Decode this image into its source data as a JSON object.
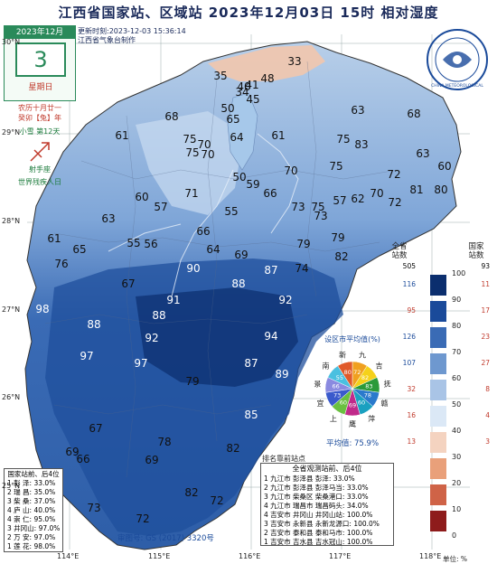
{
  "title": "江西省国家站、区域站   2023年12月03日  15时   相对湿度",
  "date_box": {
    "month": "2023年12月",
    "day": "3",
    "weekday": "星期日"
  },
  "lunar": {
    "line1": "农历十月廿一",
    "line2": "癸卯【兔】年"
  },
  "solar_term": "小雪  第12天",
  "zodiac": "射手座",
  "holiday": "世界残疾人日",
  "update_time": "更新时刻:2023-12-03  15:36:14",
  "producer": "江西省气象台制作",
  "logo_text": "CHINA METEOROLOGICAL",
  "approval": "审图号: GS (2017) 3320号",
  "lat_labels": [
    "30°N",
    "29°N",
    "28°N",
    "27°N",
    "26°N",
    "25°N"
  ],
  "lon_labels": [
    "114°E",
    "115°E",
    "116°E",
    "117°E",
    "118°E"
  ],
  "legend": {
    "header_left": "全省\n站数",
    "header_right": "国家\n站数",
    "total_count": "505",
    "national_total": "93",
    "ticks": [
      "100",
      "90",
      "80",
      "70",
      "60",
      "50",
      "40",
      "30",
      "20",
      "10",
      "0"
    ],
    "bins": [
      {
        "color": "#0b2e6e",
        "count": "116",
        "national": "11"
      },
      {
        "color": "#1a4a9a",
        "count": "95",
        "national": "17"
      },
      {
        "color": "#3a6bb5",
        "count": "126",
        "national": "23"
      },
      {
        "color": "#6e98cf",
        "count": "107",
        "national": "27"
      },
      {
        "color": "#a9c4e6",
        "count": "32",
        "national": "8"
      },
      {
        "color": "#dbe8f6",
        "count": "16",
        "national": "4"
      },
      {
        "color": "#f4d3c0",
        "count": "13",
        "national": "3"
      },
      {
        "color": "#e9a07a",
        "count": "",
        "national": ""
      },
      {
        "color": "#cf6347",
        "count": "",
        "national": ""
      },
      {
        "color": "#8e1b1b",
        "count": "",
        "national": ""
      }
    ],
    "unit": "单位: %"
  },
  "pie": {
    "title": "设区市平均值(%)",
    "average": "平均值: 75.9%",
    "slices": [
      {
        "name": "九",
        "value": "72",
        "color": "#f0a020"
      },
      {
        "name": "吉",
        "value": "82",
        "color": "#f5d11a"
      },
      {
        "name": "抚",
        "value": "83",
        "color": "#2a9a3a"
      },
      {
        "name": "赣",
        "value": "78",
        "color": "#2a7acc"
      },
      {
        "name": "萍",
        "value": "60",
        "color": "#1aa0c0"
      },
      {
        "name": "鹰",
        "value": "69",
        "color": "#c02a8a"
      },
      {
        "name": "上",
        "value": "60",
        "color": "#6ac040"
      },
      {
        "name": "宜",
        "value": "73",
        "color": "#3a5acc"
      },
      {
        "name": "景",
        "value": "66",
        "color": "#8a8ae0"
      },
      {
        "name": "南",
        "value": "55",
        "color": "#4ac0e0"
      },
      {
        "name": "新",
        "value": "80",
        "color": "#e05a2a"
      }
    ]
  },
  "left_rank": {
    "title": "国家站前、后4位",
    "rows": [
      {
        "n": "1",
        "name": "彭",
        "sub": "泽",
        "value": "33.0%"
      },
      {
        "n": "2",
        "name": "瑞",
        "sub": "昌",
        "value": "35.0%"
      },
      {
        "n": "3",
        "name": "柴",
        "sub": "桑",
        "value": "37.0%"
      },
      {
        "n": "4",
        "name": "庐",
        "sub": "山",
        "value": "40.0%"
      },
      {
        "n": "4",
        "name": "崇",
        "sub": "仁",
        "value": "95.0%"
      },
      {
        "n": "3",
        "name": "井冈山",
        "sub": "",
        "value": "97.0%"
      },
      {
        "n": "2",
        "name": "万",
        "sub": "安",
        "value": "97.0%"
      },
      {
        "n": "1",
        "name": "莲",
        "sub": "花",
        "value": "98.0%"
      }
    ]
  },
  "rank_title": "排名靠前站点",
  "right_rank": {
    "title": "全省观测站前、后4位",
    "rows": [
      {
        "n": "1",
        "text": "九江市  彭泽县      彭泽:  33.0%"
      },
      {
        "n": "2",
        "text": "九江市  彭泽县    彭泽马当: 33.0%"
      },
      {
        "n": "3",
        "text": "九江市  柴桑区    柴桑港口: 33.0%"
      },
      {
        "n": "4",
        "text": "九江市  瑞昌市    瑞昌码头: 34.0%"
      },
      {
        "n": "4",
        "text": "吉安市  井冈山    井冈山站: 100.0%"
      },
      {
        "n": "3",
        "text": "吉安市  永新县  永新龙源口: 100.0%"
      },
      {
        "n": "2",
        "text": "吉安市  泰和县    泰和马市: 100.0%"
      },
      {
        "n": "1",
        "text": "吉安市  吉水县    吉水冠山: 100.0%"
      }
    ]
  },
  "map_values": [
    {
      "v": "33"
    },
    {
      "v": "35"
    },
    {
      "v": "48"
    },
    {
      "v": "41"
    },
    {
      "v": "40"
    },
    {
      "v": "34"
    },
    {
      "v": "45"
    },
    {
      "v": "50"
    },
    {
      "v": "68"
    },
    {
      "v": "65"
    },
    {
      "v": "64"
    },
    {
      "v": "63"
    },
    {
      "v": "68"
    },
    {
      "v": "61"
    },
    {
      "v": "75"
    },
    {
      "v": "70"
    },
    {
      "v": "61"
    },
    {
      "v": "75"
    },
    {
      "v": "83"
    },
    {
      "v": "63"
    },
    {
      "v": "60"
    },
    {
      "v": "75"
    },
    {
      "v": "70"
    },
    {
      "v": "70"
    },
    {
      "v": "75"
    },
    {
      "v": "72"
    },
    {
      "v": "71"
    },
    {
      "v": "50"
    },
    {
      "v": "59"
    },
    {
      "v": "66"
    },
    {
      "v": "73"
    },
    {
      "v": "75"
    },
    {
      "v": "57"
    },
    {
      "v": "62"
    },
    {
      "v": "70"
    },
    {
      "v": "72"
    },
    {
      "v": "81"
    },
    {
      "v": "80"
    },
    {
      "v": "60"
    },
    {
      "v": "57"
    },
    {
      "v": "63"
    },
    {
      "v": "55"
    },
    {
      "v": "66"
    },
    {
      "v": "73"
    },
    {
      "v": "79"
    },
    {
      "v": "61"
    },
    {
      "v": "65"
    },
    {
      "v": "55"
    },
    {
      "v": "56"
    },
    {
      "v": "64"
    },
    {
      "v": "69"
    },
    {
      "v": "79"
    },
    {
      "v": "76"
    },
    {
      "v": "90"
    },
    {
      "v": "87"
    },
    {
      "v": "74"
    },
    {
      "v": "82"
    },
    {
      "v": "67"
    },
    {
      "v": "88"
    },
    {
      "v": "91"
    },
    {
      "v": "92"
    },
    {
      "v": "98"
    },
    {
      "v": "88"
    },
    {
      "v": "92"
    },
    {
      "v": "94"
    },
    {
      "v": "97"
    },
    {
      "v": "88"
    },
    {
      "v": "97"
    },
    {
      "v": "87"
    },
    {
      "v": "89"
    },
    {
      "v": "79"
    },
    {
      "v": "85"
    },
    {
      "v": "78"
    },
    {
      "v": "67"
    },
    {
      "v": "69"
    },
    {
      "v": "82"
    },
    {
      "v": "66"
    },
    {
      "v": "69"
    },
    {
      "v": "82"
    },
    {
      "v": "72"
    },
    {
      "v": "73"
    },
    {
      "v": "72"
    }
  ]
}
